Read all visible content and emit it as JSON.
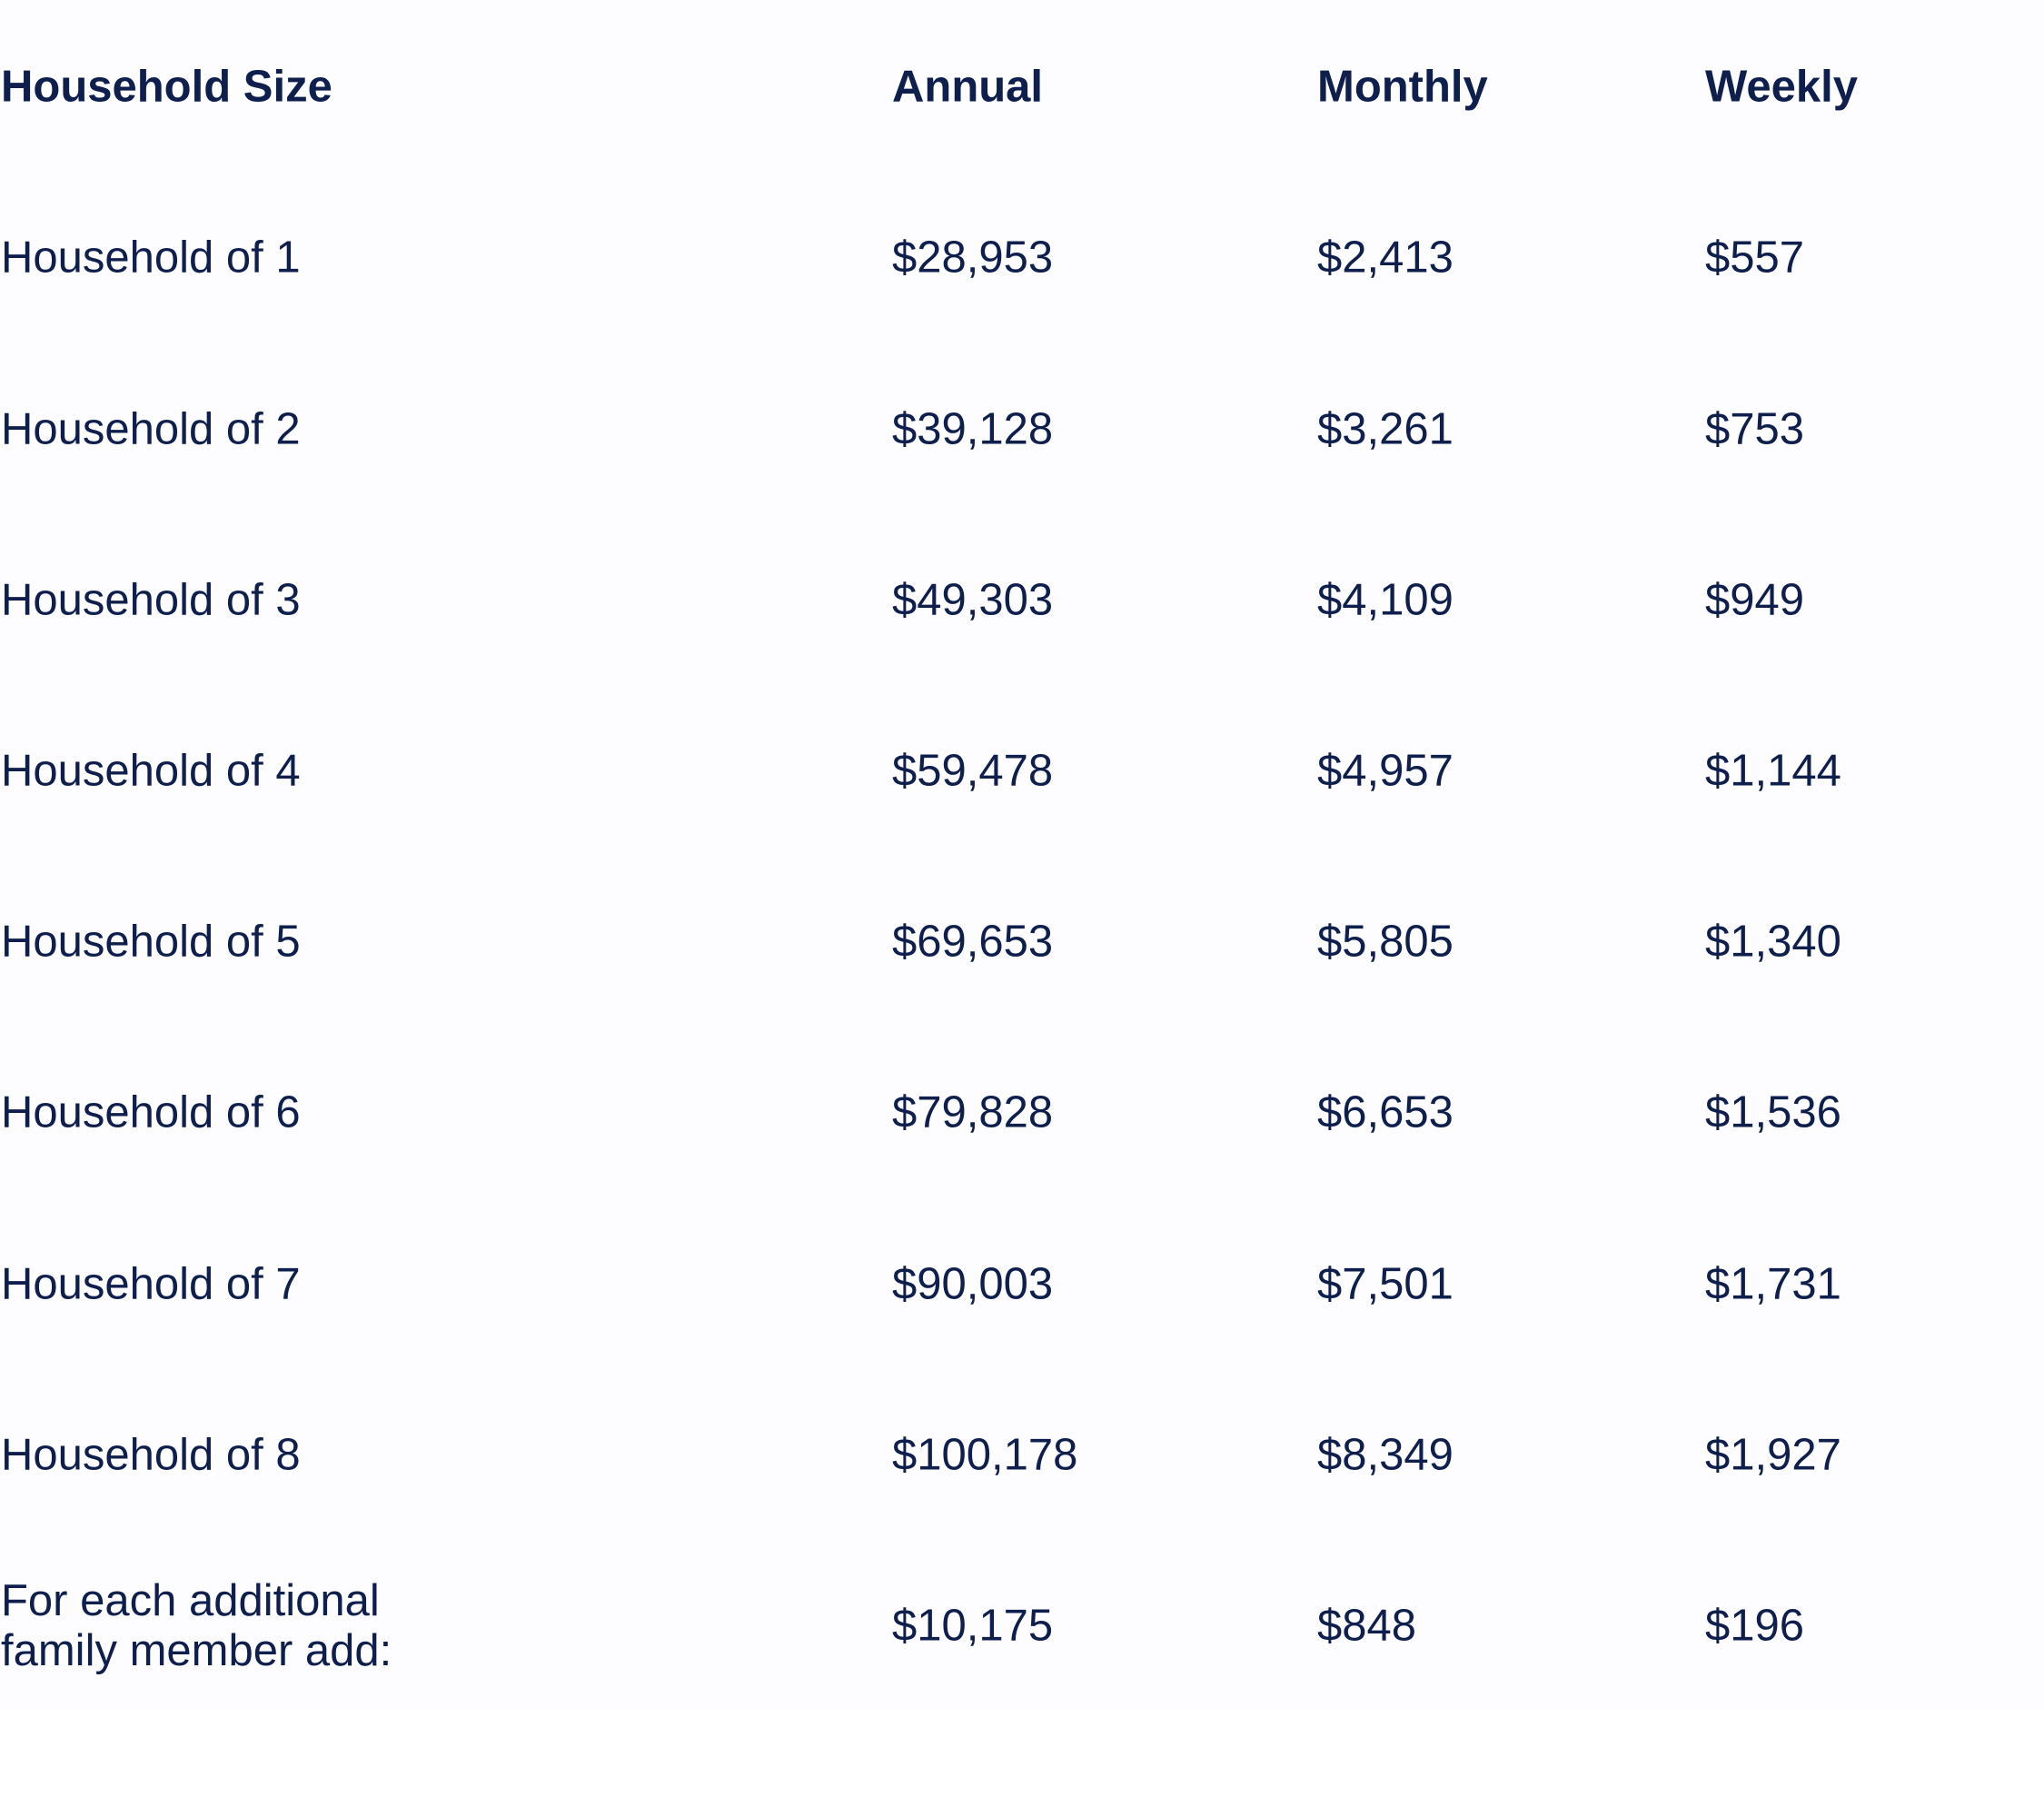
{
  "table": {
    "headers": [
      "Household Size",
      "Annual",
      "Monthly",
      "Weekly"
    ],
    "rows": [
      [
        "Household of 1",
        "$28,953",
        "$2,413",
        "$557"
      ],
      [
        "Household of 2",
        "$39,128",
        "$3,261",
        "$753"
      ],
      [
        "Household of 3",
        "$49,303",
        "$4,109",
        "$949"
      ],
      [
        "Household of 4",
        "$59,478",
        "$4,957",
        "$1,144"
      ],
      [
        "Household of 5",
        "$69,653",
        "$5,805",
        "$1,340"
      ],
      [
        "Household of 6",
        "$79,828",
        "$6,653",
        "$1,536"
      ],
      [
        "Household of 7",
        "$90,003",
        "$7,501",
        "$1,731"
      ],
      [
        "Household of 8",
        "$100,178",
        "$8,349",
        "$1,927"
      ],
      [
        "For each additional family member add:",
        "$10,175",
        "$848",
        "$196"
      ]
    ]
  },
  "colors": {
    "text": "#0f1f4d",
    "panel_background": "#fdfcfe",
    "page_background": "#ffffff"
  }
}
